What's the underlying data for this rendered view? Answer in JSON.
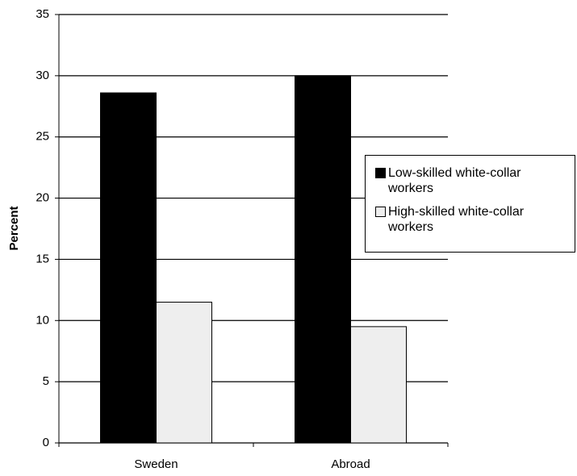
{
  "chart_data": {
    "type": "bar",
    "y_label": "Percent",
    "categories": [
      "Sweden",
      "Abroad"
    ],
    "series": [
      {
        "name": "Low-skilled white-collar workers",
        "color": "#000000",
        "values": [
          28.6,
          30.0
        ]
      },
      {
        "name": "High-skilled white-collar workers",
        "color": "#eeeeee",
        "values": [
          11.5,
          9.5
        ]
      }
    ],
    "ylim": [
      0,
      35
    ],
    "yticks": [
      0,
      5,
      10,
      15,
      20,
      25,
      30,
      35
    ],
    "grid": true,
    "legend": "right"
  }
}
